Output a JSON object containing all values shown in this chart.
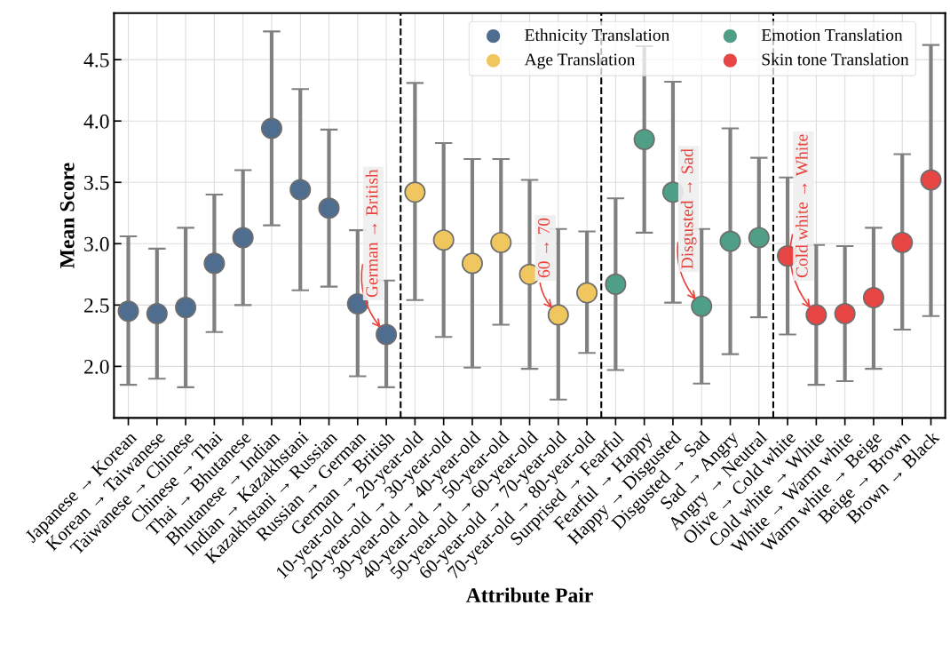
{
  "chart_data": {
    "type": "scatter",
    "xlabel": "Attribute Pair",
    "ylabel": "Mean Score",
    "categories": [
      "Japanese → Korean",
      "Korean → Taiwanese",
      "Taiwanese → Chinese",
      "Chinese → Thai",
      "Thai → Bhutanese",
      "Bhutanese → Indian",
      "Indian → Kazakhstani",
      "Kazakhstani → Russian",
      "Russian → German",
      "German → British",
      "10-year-old → 20-year-old",
      "20-year-old → 30-year-old",
      "30-year-old → 40-year-old",
      "40-year-old → 50-year-old",
      "50-year-old → 60-year-old",
      "60-year-old → 70-year-old",
      "70-year-old → 80-year-old",
      "Surprised → Fearful",
      "Fearful → Happy",
      "Happy → Disgusted",
      "Disgusted → Sad",
      "Sad → Angry",
      "Angry → Neutral",
      "Olive → Cold white",
      "Cold white → White",
      "White → Warm white",
      "Warm white → Beige",
      "Beige → Brown",
      "Brown → Black"
    ],
    "series": [
      {
        "name": "Ethnicity Translation",
        "color": "#4f6d8f",
        "values": [
          2.45,
          2.43,
          2.48,
          2.84,
          3.05,
          3.94,
          3.44,
          3.29,
          2.51,
          2.26,
          null,
          null,
          null,
          null,
          null,
          null,
          null,
          null,
          null,
          null,
          null,
          null,
          null,
          null,
          null,
          null,
          null,
          null,
          null
        ],
        "errors": [
          [
            1.85,
            3.06
          ],
          [
            1.9,
            2.96
          ],
          [
            1.83,
            3.13
          ],
          [
            2.28,
            3.4
          ],
          [
            2.5,
            3.6
          ],
          [
            3.15,
            4.73
          ],
          [
            2.62,
            4.26
          ],
          [
            2.65,
            3.93
          ],
          [
            1.92,
            3.11
          ],
          [
            1.83,
            2.7
          ],
          null,
          null,
          null,
          null,
          null,
          null,
          null,
          null,
          null,
          null,
          null,
          null,
          null,
          null,
          null,
          null,
          null,
          null,
          null
        ]
      },
      {
        "name": "Age Translation",
        "color": "#f0c75e",
        "values": [
          null,
          null,
          null,
          null,
          null,
          null,
          null,
          null,
          null,
          null,
          3.42,
          3.03,
          2.84,
          3.01,
          2.75,
          2.42,
          2.6,
          null,
          null,
          null,
          null,
          null,
          null,
          null,
          null,
          null,
          null,
          null,
          null
        ],
        "errors": [
          null,
          null,
          null,
          null,
          null,
          null,
          null,
          null,
          null,
          null,
          [
            2.54,
            4.31
          ],
          [
            2.24,
            3.82
          ],
          [
            1.99,
            3.69
          ],
          [
            2.34,
            3.69
          ],
          [
            1.98,
            3.52
          ],
          [
            1.73,
            3.12
          ],
          [
            2.11,
            3.1
          ],
          null,
          null,
          null,
          null,
          null,
          null,
          null,
          null,
          null,
          null,
          null,
          null
        ]
      },
      {
        "name": "Emotion Translation",
        "color": "#4e9f86",
        "values": [
          null,
          null,
          null,
          null,
          null,
          null,
          null,
          null,
          null,
          null,
          null,
          null,
          null,
          null,
          null,
          null,
          null,
          2.67,
          3.85,
          3.42,
          2.49,
          3.02,
          3.05,
          null,
          null,
          null,
          null,
          null,
          null
        ],
        "errors": [
          null,
          null,
          null,
          null,
          null,
          null,
          null,
          null,
          null,
          null,
          null,
          null,
          null,
          null,
          null,
          null,
          null,
          [
            1.97,
            3.37
          ],
          [
            3.09,
            4.61
          ],
          [
            2.52,
            4.32
          ],
          [
            1.86,
            3.12
          ],
          [
            2.1,
            3.94
          ],
          [
            2.4,
            3.7
          ],
          null,
          null,
          null,
          null,
          null,
          null
        ]
      },
      {
        "name": "Skin tone Translation",
        "color": "#e84545",
        "values": [
          null,
          null,
          null,
          null,
          null,
          null,
          null,
          null,
          null,
          null,
          null,
          null,
          null,
          null,
          null,
          null,
          null,
          null,
          null,
          null,
          null,
          null,
          null,
          2.9,
          2.42,
          2.43,
          2.56,
          3.01,
          3.52
        ],
        "errors": [
          null,
          null,
          null,
          null,
          null,
          null,
          null,
          null,
          null,
          null,
          null,
          null,
          null,
          null,
          null,
          null,
          null,
          null,
          null,
          null,
          null,
          null,
          null,
          [
            2.26,
            3.54
          ],
          [
            1.85,
            2.99
          ],
          [
            1.88,
            2.98
          ],
          [
            1.98,
            3.13
          ],
          [
            2.3,
            3.73
          ],
          [
            2.41,
            4.62
          ]
        ]
      }
    ],
    "ylim": [
      1.58,
      4.88
    ],
    "yticks": [
      {
        "value": 2,
        "label": "2.0"
      },
      2.5,
      {
        "value": 3,
        "label": "3.0"
      },
      3.5,
      {
        "value": 4,
        "label": "4.0"
      },
      4.5
    ],
    "annotations": [
      {
        "text": "German → British",
        "x": "German → British",
        "y": 2.26
      },
      {
        "text": "60 → 70",
        "x": "60-year-old → 70-year-old",
        "y": 2.42
      },
      {
        "text": "Disgusted → Sad",
        "x": "Disgusted → Sad",
        "y": 2.49
      },
      {
        "text": "Cold white → White",
        "x": "Cold white → White",
        "y": 2.42
      }
    ],
    "grid": true,
    "legend": "top right",
    "marker": "circle"
  }
}
